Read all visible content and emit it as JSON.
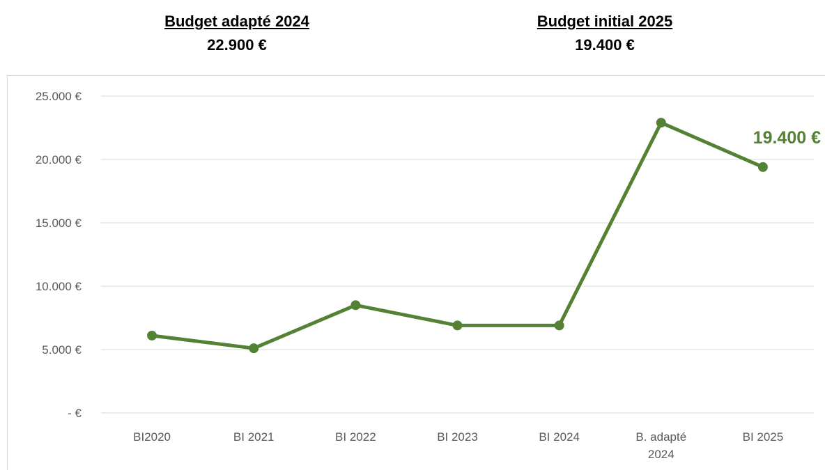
{
  "header": {
    "left": {
      "title": "Budget adapté 2024",
      "value": "22.900 €"
    },
    "right": {
      "title": "Budget initial 2025",
      "value": "19.400 €"
    }
  },
  "chart_data": {
    "type": "line",
    "categories": [
      "BI2020",
      "BI 2021",
      "BI 2022",
      "BI 2023",
      "BI 2024",
      "B. adapté 2024",
      "BI 2025"
    ],
    "category_lines": [
      [
        "BI2020"
      ],
      [
        "BI 2021"
      ],
      [
        "BI 2022"
      ],
      [
        "BI 2023"
      ],
      [
        "BI 2024"
      ],
      [
        "B. adapté",
        "2024"
      ],
      [
        "BI 2025"
      ]
    ],
    "series": [
      {
        "values": [
          6100,
          5100,
          8500,
          6900,
          6900,
          22900,
          19400
        ]
      }
    ],
    "ylim": [
      0,
      25000
    ],
    "yticks": [
      0,
      5000,
      10000,
      15000,
      20000,
      25000
    ],
    "ytick_labels": [
      "-   €",
      "5.000 €",
      "10.000 €",
      "15.000 €",
      "20.000 €",
      "25.000 €"
    ],
    "data_label": {
      "index": 6,
      "text": "19.400 €"
    },
    "grid": true,
    "legend": "none",
    "colors": {
      "line": "#548235",
      "grid": "#d9d9d9",
      "tick": "#595959"
    }
  }
}
